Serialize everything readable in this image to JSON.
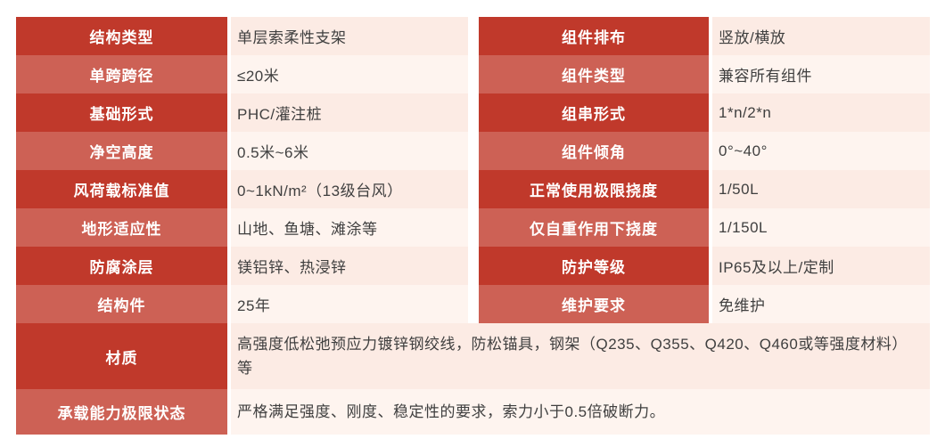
{
  "colors": {
    "page_bg": "#ffffff",
    "label_dark": "#c0392b",
    "label_light": "#cd6155",
    "value_dark": "#fcebe4",
    "value_light": "#fef4ef",
    "label_text": "#ffffff",
    "value_text": "#3f3f3f"
  },
  "table": {
    "rows": [
      {
        "left_label": "结构类型",
        "left_value": "单层索柔性支架",
        "right_label": "组件排布",
        "right_value": "竖放/横放"
      },
      {
        "left_label": "单跨跨径",
        "left_value": "≤20米",
        "right_label": "组件类型",
        "right_value": "兼容所有组件"
      },
      {
        "left_label": "基础形式",
        "left_value": "PHC/灌注桩",
        "right_label": "组串形式",
        "right_value": "1*n/2*n"
      },
      {
        "left_label": "净空高度",
        "left_value": "0.5米~6米",
        "right_label": "组件倾角",
        "right_value": "0°~40°"
      },
      {
        "left_label": "风荷载标准值",
        "left_value": "0~1kN/m²（13级台风）",
        "right_label": "正常使用极限挠度",
        "right_value": "1/50L"
      },
      {
        "left_label": "地形适应性",
        "left_value": "山地、鱼塘、滩涂等",
        "right_label": "仅自重作用下挠度",
        "right_value": "1/150L"
      },
      {
        "left_label": "防腐涂层",
        "left_value": "镁铝锌、热浸锌",
        "right_label": "防护等级",
        "right_value": "IP65及以上/定制"
      },
      {
        "left_label": "结构件",
        "left_value": "25年",
        "right_label": "维护要求",
        "right_value": "免维护"
      }
    ],
    "full_rows": [
      {
        "label": "材质",
        "value": "高强度低松弛预应力镀锌钢绞线，防松锚具，钢架（Q235、Q355、Q420、Q460或等强度材料）等"
      },
      {
        "label": "承载能力极限状态",
        "value": "严格满足强度、刚度、稳定性的要求，索力小于0.5倍破断力。"
      }
    ]
  }
}
